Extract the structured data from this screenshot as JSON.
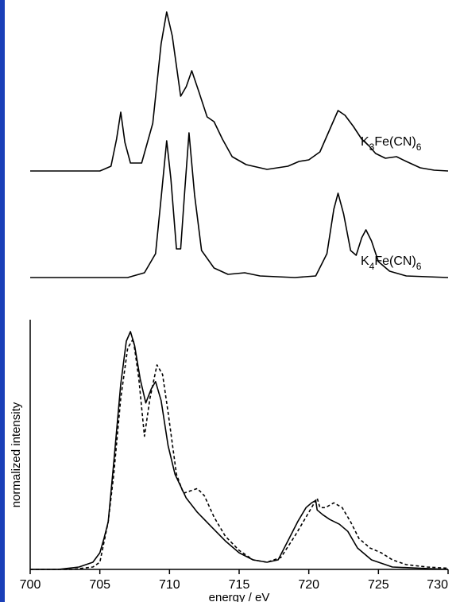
{
  "chart_data": {
    "type": "line",
    "xlabel": "energy / eV",
    "ylabel": "normalized intensity",
    "xlim": [
      700,
      730
    ],
    "x_ticks": [
      "700",
      "705",
      "710",
      "715",
      "720",
      "725",
      "730"
    ],
    "grid": false,
    "offset_spectra": [
      {
        "label_main": "K",
        "label_sub1": "3",
        "label_mid": "Fe(CN)",
        "label_sub2": "6",
        "points": [
          [
            700,
            0.0
          ],
          [
            705,
            0.0
          ],
          [
            705.8,
            0.03
          ],
          [
            706.2,
            0.2
          ],
          [
            706.5,
            0.37
          ],
          [
            706.8,
            0.18
          ],
          [
            707.2,
            0.05
          ],
          [
            708,
            0.05
          ],
          [
            708.8,
            0.3
          ],
          [
            709.4,
            0.8
          ],
          [
            709.8,
            1.0
          ],
          [
            710.2,
            0.85
          ],
          [
            710.8,
            0.47
          ],
          [
            711.2,
            0.53
          ],
          [
            711.6,
            0.63
          ],
          [
            712.1,
            0.5
          ],
          [
            712.7,
            0.34
          ],
          [
            713.2,
            0.31
          ],
          [
            713.8,
            0.2
          ],
          [
            714.5,
            0.09
          ],
          [
            715.5,
            0.04
          ],
          [
            717,
            0.01
          ],
          [
            718.5,
            0.03
          ],
          [
            719.3,
            0.06
          ],
          [
            720,
            0.07
          ],
          [
            720.8,
            0.12
          ],
          [
            721.6,
            0.28
          ],
          [
            722.1,
            0.38
          ],
          [
            722.6,
            0.35
          ],
          [
            723.2,
            0.28
          ],
          [
            723.8,
            0.2
          ],
          [
            724.3,
            0.16
          ],
          [
            724.8,
            0.11
          ],
          [
            725.5,
            0.08
          ],
          [
            726.3,
            0.09
          ],
          [
            727,
            0.06
          ],
          [
            728,
            0.02
          ],
          [
            729,
            0.005
          ],
          [
            730,
            0.0
          ]
        ]
      },
      {
        "label_main": "K",
        "label_sub1": "4",
        "label_mid": "Fe(CN)",
        "label_sub2": "6",
        "points": [
          [
            700,
            0.0
          ],
          [
            707,
            0.0
          ],
          [
            708.2,
            0.03
          ],
          [
            709,
            0.15
          ],
          [
            709.4,
            0.5
          ],
          [
            709.8,
            0.86
          ],
          [
            710.1,
            0.62
          ],
          [
            710.5,
            0.18
          ],
          [
            710.8,
            0.18
          ],
          [
            711.1,
            0.55
          ],
          [
            711.4,
            0.91
          ],
          [
            711.8,
            0.52
          ],
          [
            712.3,
            0.17
          ],
          [
            713.2,
            0.06
          ],
          [
            714.2,
            0.02
          ],
          [
            715.4,
            0.03
          ],
          [
            716.5,
            0.01
          ],
          [
            719,
            0.0
          ],
          [
            720.5,
            0.01
          ],
          [
            721.3,
            0.15
          ],
          [
            721.8,
            0.43
          ],
          [
            722.1,
            0.53
          ],
          [
            722.5,
            0.4
          ],
          [
            723,
            0.17
          ],
          [
            723.4,
            0.14
          ],
          [
            723.8,
            0.25
          ],
          [
            724.1,
            0.3
          ],
          [
            724.5,
            0.23
          ],
          [
            725,
            0.1
          ],
          [
            725.8,
            0.04
          ],
          [
            727,
            0.01
          ],
          [
            730,
            0.0
          ]
        ]
      }
    ],
    "series": [
      {
        "style": "solid",
        "points": [
          [
            700,
            0.0
          ],
          [
            702,
            0.0
          ],
          [
            703.5,
            0.01
          ],
          [
            704.5,
            0.03
          ],
          [
            705,
            0.07
          ],
          [
            705.3,
            0.13
          ],
          [
            705.6,
            0.2
          ],
          [
            706,
            0.45
          ],
          [
            706.5,
            0.78
          ],
          [
            706.9,
            0.96
          ],
          [
            707.2,
            1.0
          ],
          [
            707.5,
            0.94
          ],
          [
            707.9,
            0.8
          ],
          [
            708.3,
            0.7
          ],
          [
            708.7,
            0.76
          ],
          [
            709.0,
            0.79
          ],
          [
            709.4,
            0.71
          ],
          [
            709.9,
            0.52
          ],
          [
            710.4,
            0.4
          ],
          [
            711.2,
            0.3
          ],
          [
            712,
            0.24
          ],
          [
            713,
            0.18
          ],
          [
            714,
            0.12
          ],
          [
            715,
            0.07
          ],
          [
            716,
            0.04
          ],
          [
            717,
            0.03
          ],
          [
            717.8,
            0.04
          ],
          [
            718.5,
            0.12
          ],
          [
            719.2,
            0.2
          ],
          [
            719.8,
            0.26
          ],
          [
            720.2,
            0.28
          ],
          [
            720.5,
            0.29
          ],
          [
            720.6,
            0.25
          ],
          [
            721,
            0.23
          ],
          [
            721.5,
            0.21
          ],
          [
            722.2,
            0.19
          ],
          [
            722.8,
            0.16
          ],
          [
            723.5,
            0.09
          ],
          [
            724.5,
            0.04
          ],
          [
            726,
            0.01
          ],
          [
            728,
            0.005
          ],
          [
            730,
            0.0
          ]
        ]
      },
      {
        "style": "dashed",
        "points": [
          [
            700,
            0.0
          ],
          [
            703,
            0.0
          ],
          [
            704.5,
            0.01
          ],
          [
            705,
            0.03
          ],
          [
            705.6,
            0.2
          ],
          [
            706,
            0.4
          ],
          [
            706.5,
            0.72
          ],
          [
            707.0,
            0.93
          ],
          [
            707.4,
            0.97
          ],
          [
            707.8,
            0.8
          ],
          [
            708.2,
            0.56
          ],
          [
            708.6,
            0.72
          ],
          [
            709.1,
            0.86
          ],
          [
            709.5,
            0.82
          ],
          [
            709.9,
            0.66
          ],
          [
            710.5,
            0.4
          ],
          [
            711,
            0.32
          ],
          [
            711.5,
            0.33
          ],
          [
            712,
            0.34
          ],
          [
            712.5,
            0.31
          ],
          [
            713.2,
            0.22
          ],
          [
            714,
            0.14
          ],
          [
            715,
            0.08
          ],
          [
            716,
            0.04
          ],
          [
            717,
            0.03
          ],
          [
            718,
            0.05
          ],
          [
            719,
            0.14
          ],
          [
            719.8,
            0.22
          ],
          [
            720.4,
            0.28
          ],
          [
            720.6,
            0.3
          ],
          [
            720.8,
            0.26
          ],
          [
            721.2,
            0.26
          ],
          [
            721.8,
            0.28
          ],
          [
            722.4,
            0.26
          ],
          [
            723,
            0.2
          ],
          [
            723.6,
            0.13
          ],
          [
            724.4,
            0.09
          ],
          [
            725.2,
            0.07
          ],
          [
            726,
            0.04
          ],
          [
            727,
            0.02
          ],
          [
            728.5,
            0.01
          ],
          [
            730,
            0.005
          ]
        ]
      }
    ]
  }
}
